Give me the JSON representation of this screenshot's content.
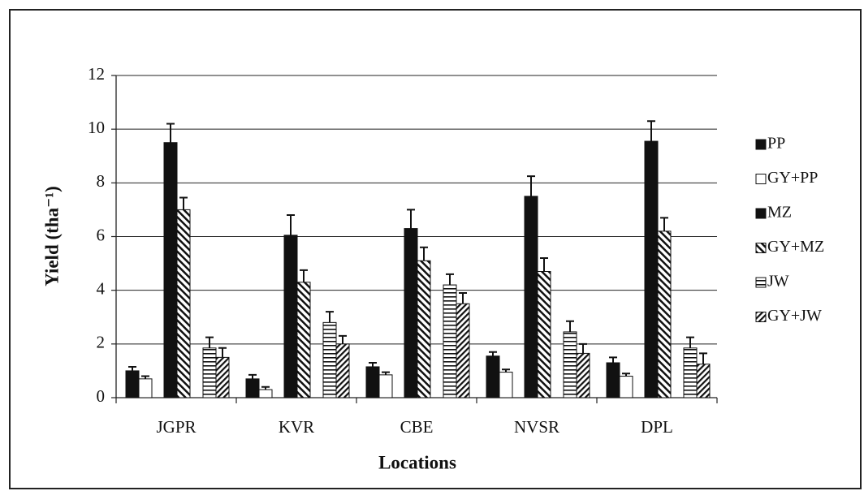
{
  "chart_data": {
    "type": "bar",
    "x_label": "Locations",
    "y_label": "Yield (tha⁻¹)",
    "categories": [
      "JGPR",
      "KVR",
      "CBE",
      "NVSR",
      "DPL"
    ],
    "series": [
      {
        "name": "PP",
        "color": "#111111",
        "pattern": "solid",
        "values": [
          1.0,
          0.7,
          1.15,
          1.55,
          1.3
        ],
        "errors": [
          0.15,
          0.15,
          0.15,
          0.15,
          0.2
        ]
      },
      {
        "name": "GY+PP",
        "color": "#ffffff",
        "pattern": "solid",
        "values": [
          0.7,
          0.3,
          0.85,
          0.95,
          0.8
        ],
        "errors": [
          0.1,
          0.1,
          0.1,
          0.1,
          0.1
        ]
      },
      {
        "name": "MZ",
        "color": "#111111",
        "pattern": "solid",
        "values": [
          9.5,
          6.05,
          6.3,
          7.5,
          9.55
        ],
        "errors": [
          0.7,
          0.75,
          0.7,
          0.75,
          0.75
        ]
      },
      {
        "name": "GY+MZ",
        "color": "#111111",
        "pattern": "diagonal-back",
        "values": [
          7.0,
          4.3,
          5.1,
          4.7,
          6.2
        ],
        "errors": [
          0.45,
          0.45,
          0.5,
          0.5,
          0.5
        ]
      },
      {
        "name": "JW",
        "color": "#111111",
        "pattern": "horizontal",
        "values": [
          1.85,
          2.8,
          4.2,
          2.45,
          1.85
        ],
        "errors": [
          0.4,
          0.4,
          0.4,
          0.4,
          0.4
        ]
      },
      {
        "name": "GY+JW",
        "color": "#111111",
        "pattern": "diagonal-forward",
        "values": [
          1.5,
          2.0,
          3.5,
          1.65,
          1.25
        ],
        "errors": [
          0.35,
          0.3,
          0.4,
          0.35,
          0.4
        ]
      }
    ],
    "ylim": [
      0,
      12
    ],
    "yticks": [
      0,
      2,
      4,
      6,
      8,
      10,
      12
    ],
    "grid": true,
    "legend": "right"
  }
}
